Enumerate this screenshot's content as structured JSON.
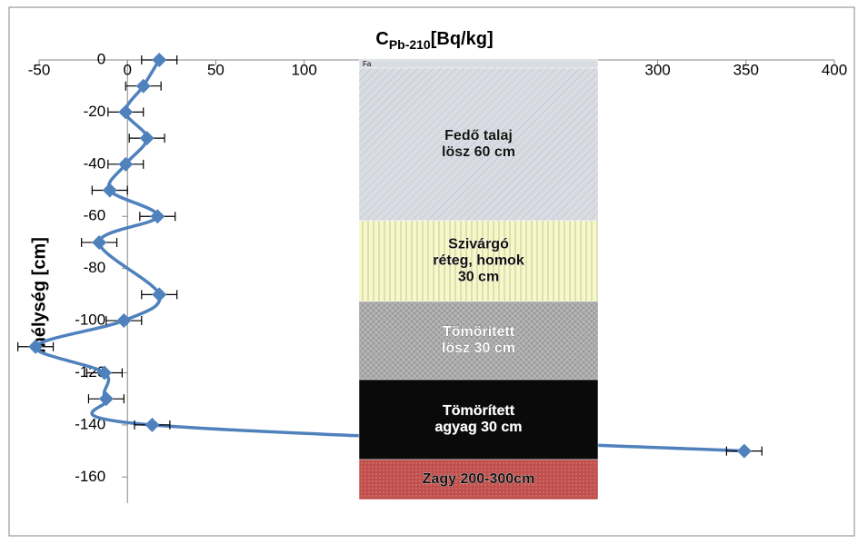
{
  "chart_data": {
    "type": "scatter",
    "title": {
      "main": "C",
      "sub": "Pb-210",
      "unit": "[Bq/kg]"
    },
    "y_label": "mélység [cm]",
    "xlim": [
      -50,
      400
    ],
    "xticks": [
      -50,
      0,
      50,
      100,
      150,
      200,
      250,
      300,
      350,
      400
    ],
    "ylim": [
      -170,
      0
    ],
    "yticks": [
      0,
      -20,
      -40,
      -60,
      -80,
      -100,
      -120,
      -140,
      -160
    ],
    "series": [
      {
        "color": "#4f81bd",
        "x": [
          18,
          9,
          -1,
          11,
          -1,
          -10,
          17,
          -16,
          18,
          -2,
          -52,
          -13,
          -12,
          14,
          349
        ],
        "values": [
          0,
          -10,
          -20,
          -30,
          -40,
          -50,
          -60,
          -70,
          -90,
          -100,
          -110,
          -120,
          -130,
          -140,
          -150
        ],
        "errors": [
          10,
          10,
          10,
          10,
          10,
          10,
          10,
          10,
          10,
          10,
          10,
          10,
          10,
          10,
          10
        ]
      }
    ],
    "layers": [
      {
        "label": "Fa",
        "color": "#d9dce3"
      },
      {
        "label": "Fedő talaj lösz 60 cm",
        "color": "#d9dce3"
      },
      {
        "label": "Szivárgó réteg, homok 30 cm",
        "color": "#f6f8c9"
      },
      {
        "label": "Tömörített lösz 30 cm",
        "color": "#9c9c9c"
      },
      {
        "label": "Tömörített agyag 30 cm",
        "color": "#0a0a0a"
      },
      {
        "label": "Zagy 200-300cm",
        "color": "#c0504d"
      }
    ]
  }
}
